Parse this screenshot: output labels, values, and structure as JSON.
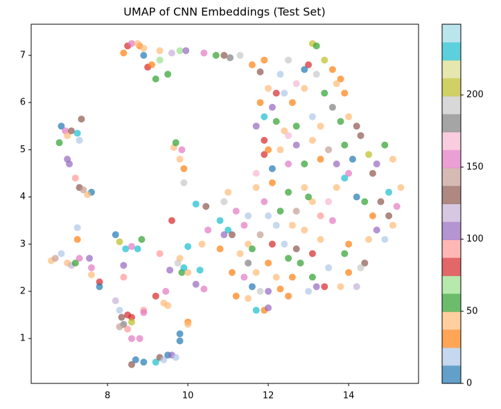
{
  "chart_data": {
    "type": "scatter",
    "title": "UMAP of CNN Embeddings (Test Set)",
    "x": [
      8.4,
      8.5,
      8.6,
      8.8,
      8.9,
      8.75,
      8.9,
      9.0,
      9.1,
      9.2,
      9.3,
      9.5,
      9.3,
      9.6,
      9.8,
      9.95,
      10.4,
      10.7,
      10.9,
      11.05,
      11.3,
      11.6,
      11.8,
      11.9,
      6.85,
      6.95,
      7.0,
      6.8,
      7.1,
      7.25,
      7.3,
      7.35,
      7.0,
      7.05,
      7.2,
      7.3,
      7.4,
      7.6,
      7.5,
      6.6,
      6.7,
      6.85,
      7.0,
      7.1,
      7.2,
      7.3,
      7.25,
      7.25,
      7.55,
      7.6,
      7.6,
      7.8,
      7.8,
      8.2,
      8.3,
      8.45,
      8.6,
      8.85,
      8.75,
      8.4,
      8.4,
      8.2,
      8.3,
      8.35,
      8.5,
      8.6,
      8.4,
      8.5,
      8.3,
      8.6,
      8.6,
      8.8,
      8.9,
      8.9,
      8.6,
      8.7,
      8.9,
      9.2,
      9.3,
      9.4,
      9.5,
      9.6,
      9.7,
      9.8,
      9.8,
      10.0,
      10.0,
      9.2,
      9.4,
      9.45,
      9.5,
      9.3,
      9.55,
      9.8,
      9.75,
      9.85,
      10.0,
      9.9,
      10.0,
      9.6,
      10.2,
      10.3,
      10.4,
      10.35,
      10.5,
      10.45,
      10.2,
      9.9,
      9.9,
      9.8,
      9.65,
      9.7,
      9.85,
      11.0,
      10.9,
      10.8,
      11.0,
      11.1,
      10.9,
      10.8,
      11.1,
      11.2,
      11.4,
      11.2,
      11.4,
      11.5,
      11.5,
      11.6,
      11.7,
      11.5,
      11.7,
      11.8,
      11.9,
      12.0,
      12.0,
      12.2,
      12.3,
      12.0,
      12.1,
      12.2,
      12.4,
      12.5,
      12.6,
      12.7,
      12.8,
      12.9,
      13.0,
      13.1,
      13.2,
      13.4,
      13.5,
      13.1,
      13.3,
      13.6,
      13.9,
      14.0,
      14.2,
      14.4,
      14.5,
      14.7,
      14.9,
      15.1,
      15.2,
      15.3,
      15.0,
      14.8,
      14.6,
      14.4,
      14.2,
      13.9,
      13.7,
      13.5,
      13.3,
      13.1,
      12.9,
      12.7,
      12.5,
      12.3,
      12.1,
      11.9,
      11.7,
      11.5,
      11.7,
      11.9,
      12.1,
      12.3,
      12.5,
      12.7,
      12.9,
      13.1,
      13.3,
      13.5,
      13.7,
      13.9,
      14.1,
      14.3,
      14.5,
      14.7,
      14.9,
      15.1,
      14.6,
      14.0,
      13.8,
      13.6,
      13.4,
      13.2,
      13.0,
      13.1,
      13.2,
      13.4,
      13.6,
      13.8,
      13.9,
      13.7,
      14.0,
      14.2,
      12.9,
      12.7,
      12.5,
      12.3,
      12.2,
      12.1,
      12.0,
      11.9,
      11.7,
      11.8,
      12.4,
      12.6,
      12.9,
      13.1,
      13.3,
      12.7,
      12.4,
      12.2,
      11.9,
      12.0,
      12.5,
      13.0,
      12.0,
      11.8,
      11.3,
      11.6,
      12.5,
      13.8,
      14.3,
      15.0,
      12.6,
      14.0
    ],
    "y": [
      7.05,
      7.2,
      7.25,
      7.2,
      7.15,
      7.25,
      7.0,
      6.75,
      6.8,
      6.5,
      6.9,
      6.6,
      7.1,
      7.05,
      7.1,
      7.1,
      7.05,
      7.0,
      7.0,
      6.95,
      7.0,
      6.8,
      6.65,
      6.9,
      5.5,
      5.4,
      5.3,
      5.15,
      5.4,
      5.35,
      5.2,
      5.65,
      4.8,
      4.7,
      4.4,
      4.2,
      4.15,
      4.1,
      4.05,
      2.65,
      2.7,
      2.8,
      2.6,
      2.55,
      2.6,
      2.7,
      3.1,
      3.35,
      2.7,
      2.5,
      2.35,
      2.2,
      2.1,
      3.2,
      3.05,
      2.9,
      2.95,
      3.1,
      2.9,
      2.55,
      2.3,
      1.8,
      1.6,
      1.45,
      1.5,
      1.45,
      1.3,
      1.2,
      1.25,
      1.35,
      1.0,
      1.0,
      1.6,
      1.55,
      0.45,
      0.55,
      0.5,
      0.5,
      0.6,
      0.55,
      0.65,
      0.65,
      0.6,
      0.95,
      1.1,
      1.35,
      1.3,
      1.9,
      1.75,
      2.0,
      1.7,
      2.8,
      2.45,
      2.7,
      2.6,
      2.4,
      2.4,
      2.5,
      2.95,
      3.5,
      2.15,
      2.45,
      2.05,
      3.0,
      3.3,
      3.8,
      3.85,
      4.3,
      4.6,
      4.8,
      5.05,
      5.15,
      5.0,
      4.1,
      3.9,
      3.5,
      3.3,
      3.2,
      3.2,
      2.9,
      2.4,
      1.9,
      2.3,
      3.7,
      3.4,
      3.0,
      2.6,
      2.9,
      2.4,
      1.85,
      1.6,
      2.0,
      1.6,
      1.65,
      2.0,
      2.3,
      2.05,
      2.6,
      3.0,
      3.4,
      3.0,
      2.7,
      2.3,
      2.9,
      2.6,
      3.3,
      2.0,
      2.3,
      2.1,
      2.1,
      2.5,
      2.8,
      3.1,
      3.5,
      2.8,
      2.4,
      2.1,
      2.6,
      3.1,
      3.3,
      3.1,
      3.4,
      3.8,
      4.2,
      4.1,
      3.9,
      3.6,
      3.9,
      4.0,
      4.4,
      4.2,
      3.9,
      3.6,
      3.9,
      4.2,
      3.7,
      4.1,
      3.7,
      4.3,
      3.9,
      4.2,
      3.6,
      4.5,
      4.9,
      4.6,
      5.0,
      4.7,
      5.1,
      4.7,
      5.2,
      4.8,
      5.0,
      4.7,
      5.1,
      4.8,
      5.3,
      4.9,
      4.7,
      5.1,
      4.8,
      4.5,
      4.5,
      5.6,
      5.9,
      6.2,
      6.6,
      6.8,
      7.25,
      7.2,
      6.9,
      6.7,
      6.5,
      6.2,
      6.4,
      5.7,
      5.5,
      6.7,
      6.4,
      6.9,
      6.6,
      6.2,
      5.9,
      6.3,
      5.7,
      5.5,
      6.0,
      6.2,
      6.0,
      6.3,
      5.7,
      5.5,
      5.5,
      5.4,
      5.6,
      5.2,
      5.0,
      5.3,
      4.0,
      3.6,
      3.2,
      2.8,
      2.1,
      1.9,
      2.1,
      2.5,
      3.6,
      3.4,
      3.0
    ],
    "c": [
      30,
      80,
      160,
      30,
      40,
      40,
      10,
      80,
      30,
      55,
      65,
      55,
      40,
      120,
      70,
      110,
      160,
      55,
      125,
      180,
      190,
      30,
      125,
      30,
      10,
      160,
      40,
      55,
      125,
      230,
      20,
      130,
      110,
      110,
      90,
      130,
      140,
      10,
      40,
      40,
      140,
      20,
      40,
      120,
      50,
      160,
      30,
      20,
      110,
      160,
      40,
      80,
      10,
      10,
      200,
      230,
      150,
      50,
      230,
      110,
      90,
      120,
      20,
      130,
      80,
      80,
      180,
      90,
      140,
      200,
      160,
      160,
      90,
      150,
      130,
      10,
      10,
      230,
      130,
      20,
      10,
      110,
      20,
      10,
      10,
      30,
      40,
      80,
      40,
      160,
      40,
      90,
      110,
      40,
      190,
      50,
      40,
      230,
      230,
      80,
      110,
      230,
      150,
      40,
      160,
      130,
      230,
      190,
      30,
      40,
      40,
      60,
      160,
      40,
      190,
      230,
      230,
      130,
      110,
      30,
      30,
      30,
      160,
      150,
      160,
      40,
      180,
      50,
      40,
      40,
      230,
      190,
      30,
      110,
      110,
      40,
      30,
      30,
      80,
      20,
      20,
      50,
      30,
      130,
      60,
      40,
      20,
      50,
      110,
      80,
      20,
      80,
      40,
      160,
      60,
      30,
      120,
      130,
      40,
      110,
      20,
      40,
      150,
      40,
      230,
      130,
      30,
      60,
      10,
      230,
      40,
      170,
      90,
      40,
      40,
      140,
      60,
      50,
      30,
      160,
      40,
      20,
      170,
      80,
      10,
      40,
      160,
      110,
      60,
      40,
      30,
      140,
      110,
      60,
      10,
      130,
      200,
      110,
      60,
      40,
      130,
      160,
      60,
      180,
      60,
      190,
      80,
      200,
      50,
      200,
      30,
      30,
      30,
      40,
      40,
      130,
      10,
      170,
      190,
      20,
      80,
      110,
      40,
      230,
      110,
      30,
      20,
      30,
      40,
      20,
      40,
      60,
      40,
      50,
      80,
      30,
      170,
      50,
      20,
      140,
      40,
      10,
      30,
      40,
      190,
      130,
      40,
      30
    ],
    "colormap": [
      "#1f77b4",
      "#aec7e8",
      "#ff7f0e",
      "#ffbb78",
      "#2ca02c",
      "#98df8a",
      "#d62728",
      "#ff9896",
      "#9467bd",
      "#c5b0d5",
      "#8c564b",
      "#c49c94",
      "#e377c2",
      "#f7b6d2",
      "#7f7f7f",
      "#c7c7c7",
      "#bcbd22",
      "#dbdb8d",
      "#17becf",
      "#9edae5"
    ],
    "alpha": 0.7,
    "xlim": [
      6.1,
      15.74
    ],
    "ylim": [
      0.05,
      7.66
    ],
    "xticks": [
      8,
      10,
      12,
      14
    ],
    "yticks": [
      1,
      2,
      3,
      4,
      5,
      6,
      7
    ],
    "clim": [
      0,
      249
    ],
    "cticks": [
      0,
      50,
      100,
      150,
      200
    ]
  }
}
